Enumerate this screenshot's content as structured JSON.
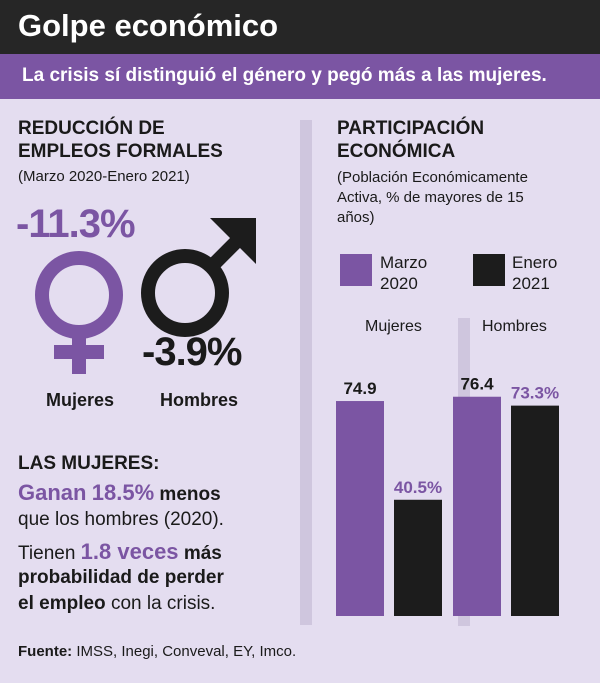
{
  "header": {
    "title": "Golpe económico"
  },
  "subheader": {
    "text": "La crisis sí distinguió el género y pegó más a las mujeres."
  },
  "left": {
    "title_line1": "REDUCCIÓN DE",
    "title_line2": "EMPLEOS FORMALES",
    "period": "(Marzo 2020-Enero 2021)",
    "women_pct": "-11.3%",
    "men_pct": "-3.9%",
    "women_label": "Mujeres",
    "men_label": "Hombres",
    "women_heading": "LAS MUJERES:",
    "fact1_a": "Ganan",
    "fact1_b": "18.5%",
    "fact1_c": "menos",
    "fact1_line2": "que los hombres (2020).",
    "fact2_a": "Tienen",
    "fact2_b": "1.8 veces",
    "fact2_c": "más",
    "fact2_line2": "probabilidad de perder",
    "fact2_line3a": "el empleo",
    "fact2_line3b": "con la crisis."
  },
  "right": {
    "title_line1": "PARTICIPACIÓN",
    "title_line2": "ECONÓMICA",
    "note_line1": "(Población Económicamente",
    "note_line2": "Activa, % de mayores de 15",
    "note_line3": "años)"
  },
  "colors": {
    "purple": "#7b55a3",
    "black": "#1c1c1c",
    "dark": "#262626",
    "background": "#e4ddf0"
  },
  "icons": [
    "female-symbol-icon",
    "male-symbol-icon"
  ],
  "chart_data": {
    "type": "bar",
    "title": "PARTICIPACIÓN ECONÓMICA",
    "subtitle": "(Población Económicamente Activa, % de mayores de 15 años)",
    "categories": [
      "Mujeres",
      "Hombres"
    ],
    "series": [
      {
        "name_line1": "Marzo",
        "name_line2": "2020",
        "color": "#7b55a3",
        "values": [
          74.9,
          76.4
        ],
        "labels": [
          "74.9",
          "76.4"
        ]
      },
      {
        "name_line1": "Enero",
        "name_line2": "2021",
        "color": "#1c1c1c",
        "values": [
          40.5,
          73.3
        ],
        "labels": [
          "40.5%",
          "73.3%"
        ]
      }
    ],
    "ylim": [
      0,
      100
    ],
    "legend": "top",
    "grid": false
  },
  "source": {
    "label": "Fuente:",
    "text": "IMSS, Inegi, Conveval, EY, Imco."
  }
}
